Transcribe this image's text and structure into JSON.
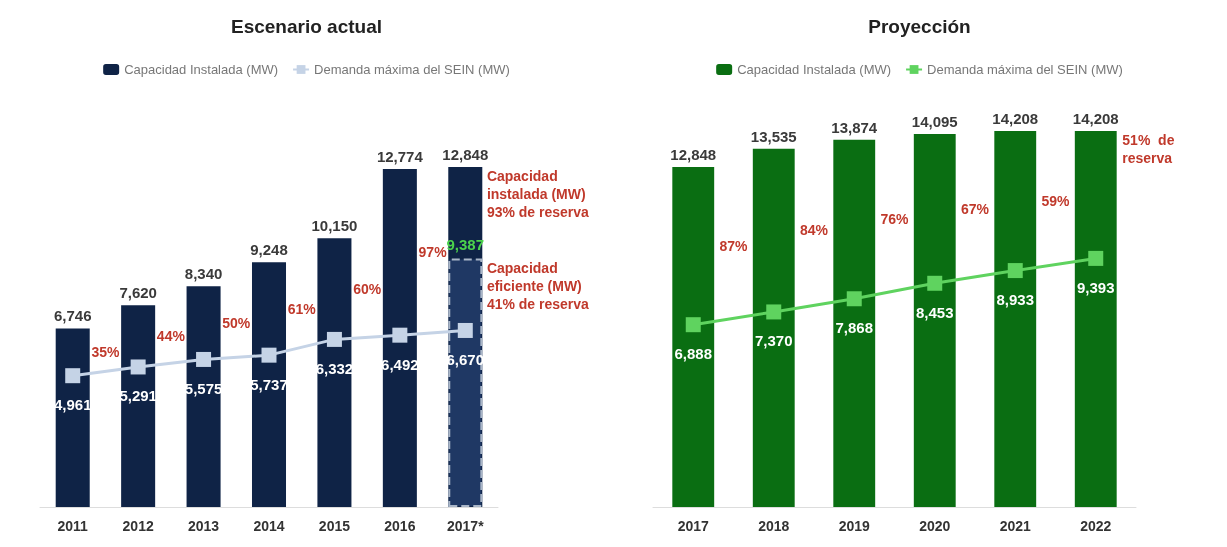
{
  "chart_data": [
    {
      "type": "bar",
      "title": "Escenario actual",
      "categories": [
        "2011",
        "2012",
        "2013",
        "2014",
        "2015",
        "2016",
        "2017*"
      ],
      "series": [
        {
          "name": "Capacidad Instalada (MW)",
          "color": "#0f2346",
          "values": [
            6746,
            7620,
            8340,
            9248,
            10150,
            12774,
            12848
          ],
          "value_labels": [
            "6,746",
            "7,620",
            "8,340",
            "9,248",
            "10,150",
            "12,774",
            "12,848"
          ]
        },
        {
          "type": "line",
          "name": "Demanda máxima del SEIN (MW)",
          "color": "#c5d3e6",
          "values": [
            4961,
            5291,
            5575,
            5737,
            6332,
            6492,
            6670
          ],
          "value_labels": [
            "4,961",
            "5,291",
            "5,575",
            "5,737",
            "6,332",
            "6,492",
            "6,670"
          ]
        },
        {
          "type": "bar",
          "color": "#1f3864",
          "values": [
            null,
            null,
            null,
            null,
            null,
            null,
            9387
          ],
          "value_labels": [
            null,
            null,
            null,
            null,
            null,
            null,
            "9,387"
          ]
        }
      ],
      "marker": "square",
      "legend": "top",
      "grid": false,
      "annotations": [
        "35%",
        "44%",
        "50%",
        "61%",
        "60%",
        "97%",
        "Capacidad\ninstalada (MW)\n93% de reserva",
        "Capacidad\neficiente (MW)\n41% de reserva"
      ]
    },
    {
      "type": "bar",
      "title": "Proyección",
      "categories": [
        "2017",
        "2018",
        "2019",
        "2020",
        "2021",
        "2022"
      ],
      "series": [
        {
          "name": "Capacidad Instalada (MW)",
          "color": "#0a6e12",
          "values": [
            12848,
            13535,
            13874,
            14095,
            14208,
            14208
          ],
          "value_labels": [
            "12,848",
            "13,535",
            "13,874",
            "14,095",
            "14,208",
            "14,208"
          ]
        },
        {
          "type": "line",
          "name": "Demanda máxima del SEIN (MW)",
          "color": "#5fd35f",
          "values": [
            6888,
            7370,
            7868,
            8453,
            8933,
            9393
          ],
          "value_labels": [
            "6,888",
            "7,370",
            "7,868",
            "8,453",
            "8,933",
            "9,393"
          ]
        }
      ],
      "marker": "square",
      "legend": "top",
      "grid": false,
      "annotations": [
        "87%",
        "84%",
        "76%",
        "67%",
        "59%",
        "51%  de\nreserva"
      ]
    }
  ]
}
